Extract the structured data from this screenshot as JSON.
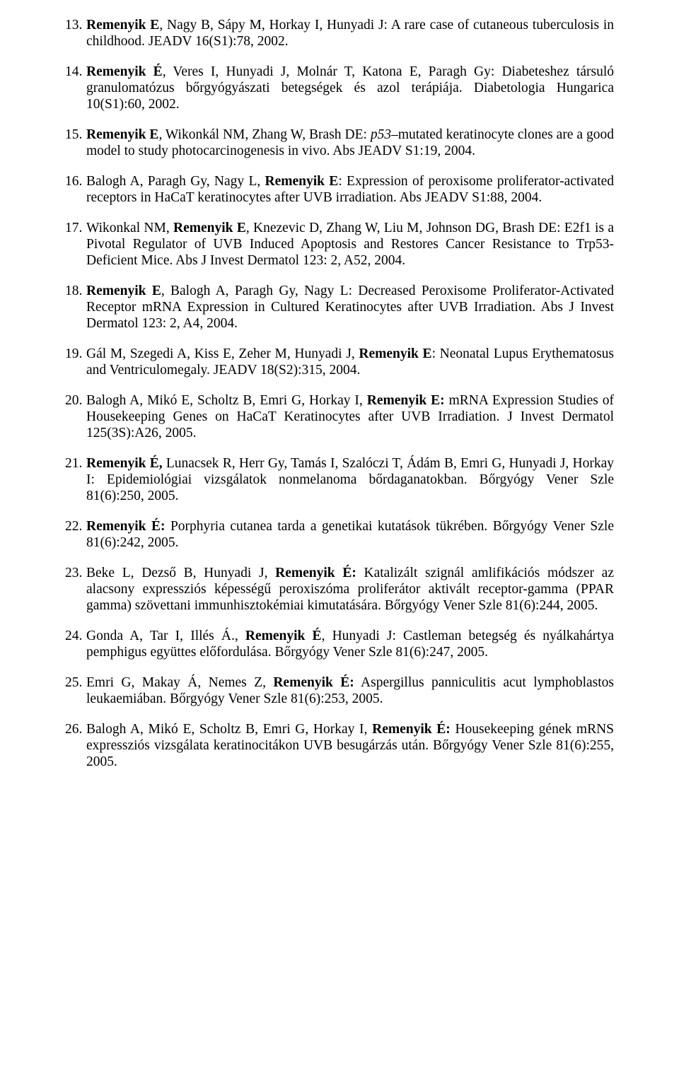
{
  "font": {
    "family": "Times New Roman",
    "size_pt": 15,
    "color": "#000000",
    "background": "#ffffff"
  },
  "references": [
    {
      "num": "13.",
      "segments": [
        {
          "t": "Remenyik E",
          "b": true
        },
        {
          "t": ", Nagy B, Sápy M, Horkay I, Hunyadi J: A rare case of cutaneous tuberculosis in childhood. JEADV 16(S1):78, 2002."
        }
      ]
    },
    {
      "num": "14.",
      "segments": [
        {
          "t": "Remenyik É",
          "b": true
        },
        {
          "t": ", Veres I, Hunyadi J, Molnár T, Katona E, Paragh Gy: Diabeteshez társuló granulomatózus bőrgyógyászati betegségek és azol terápiája. Diabetologia Hungarica 10(S1):60, 2002."
        }
      ]
    },
    {
      "num": "15.",
      "segments": [
        {
          "t": "Remenyik E",
          "b": true
        },
        {
          "t": ", Wikonkál NM, Zhang W, Brash DE: "
        },
        {
          "t": "p53",
          "i": true
        },
        {
          "t": "–mutated keratinocyte clones are a good model to study photocarcinogenesis in vivo. Abs JEADV S1:19, 2004."
        }
      ]
    },
    {
      "num": "16.",
      "segments": [
        {
          "t": "Balogh A, Paragh Gy, Nagy L, "
        },
        {
          "t": "Remenyik E",
          "b": true
        },
        {
          "t": ": Expression of peroxisome proliferator-activated receptors in HaCaT keratinocytes after UVB irradiation. Abs JEADV S1:88, 2004."
        }
      ]
    },
    {
      "num": "17.",
      "segments": [
        {
          "t": "Wikonkal NM, "
        },
        {
          "t": "Remenyik E",
          "b": true
        },
        {
          "t": ", Knezevic D, Zhang W, Liu M, Johnson DG, Brash DE: E2f1 is a Pivotal Regulator of UVB Induced Apoptosis and Restores Cancer Resistance to Trp53-Deficient Mice. Abs J Invest Dermatol 123: 2, A52, 2004."
        }
      ]
    },
    {
      "num": "18.",
      "segments": [
        {
          "t": "Remenyik E",
          "b": true
        },
        {
          "t": ", Balogh A, Paragh Gy, Nagy L: Decreased Peroxisome Proliferator-Activated Receptor mRNA Expression in Cultured Keratinocytes after UVB Irradiation. Abs J Invest Dermatol 123: 2, A4, 2004."
        }
      ]
    },
    {
      "num": "19.",
      "segments": [
        {
          "t": "Gál M, Szegedi A, Kiss E, Zeher M, Hunyadi J, "
        },
        {
          "t": "Remenyik E",
          "b": true
        },
        {
          "t": ": Neonatal Lupus Erythematosus and Ventriculomegaly. JEADV 18(S2):315, 2004."
        }
      ]
    },
    {
      "num": "20.",
      "segments": [
        {
          "t": "Balogh A, Mikó E, Scholtz B, Emri G, Horkay I, "
        },
        {
          "t": "Remenyik E:",
          "b": true
        },
        {
          "t": " mRNA Expression Studies of Housekeeping Genes on HaCaT Keratinocytes after UVB Irradiation. J Invest Dermatol 125(3S):A26, 2005."
        }
      ]
    },
    {
      "num": "21.",
      "segments": [
        {
          "t": "Remenyik É,",
          "b": true
        },
        {
          "t": " Lunacsek R, Herr Gy, Tamás I, Szalóczi T, Ádám B, Emri G, Hunyadi J, Horkay I: Epidemiológiai vizsgálatok nonmelanoma bőrdaganatokban. Bőrgyógy Vener Szle 81(6):250, 2005."
        }
      ]
    },
    {
      "num": "22.",
      "segments": [
        {
          "t": "Remenyik É:",
          "b": true
        },
        {
          "t": " Porphyria cutanea tarda a genetikai kutatások tükrében. Bőrgyógy Vener Szle 81(6):242, 2005."
        }
      ]
    },
    {
      "num": "23.",
      "segments": [
        {
          "t": "Beke L, Dezső B, Hunyadi J, "
        },
        {
          "t": "Remenyik É:",
          "b": true
        },
        {
          "t": " Katalizált szignál amlifikációs módszer az alacsony expressziós képességű peroxiszóma proliferátor aktivált receptor-gamma (PPAR gamma) szövettani immunhisztokémiai kimutatására. Bőrgyógy Vener Szle 81(6):244, 2005."
        }
      ]
    },
    {
      "num": "24.",
      "segments": [
        {
          "t": "Gonda A, Tar I, Illés Á., "
        },
        {
          "t": "Remenyik É",
          "b": true
        },
        {
          "t": ", Hunyadi J: Castleman betegség és nyálkahártya pemphigus együttes előfordulása. Bőrgyógy Vener Szle 81(6):247, 2005."
        }
      ]
    },
    {
      "num": "25.",
      "segments": [
        {
          "t": "Emri G, Makay Á, Nemes Z, "
        },
        {
          "t": "Remenyik É:",
          "b": true
        },
        {
          "t": " Aspergillus panniculitis acut lymphoblastos leukaemiában. Bőrgyógy Vener Szle 81(6):253, 2005."
        }
      ]
    },
    {
      "num": "26.",
      "segments": [
        {
          "t": "Balogh A, Mikó E, Scholtz B, Emri G, Horkay I, "
        },
        {
          "t": "Remenyik É:",
          "b": true
        },
        {
          "t": " Housekeeping gének mRNS expressziós vizsgálata keratinocitákon UVB besugárzás után. Bőrgyógy Vener Szle 81(6):255, 2005."
        }
      ]
    }
  ]
}
